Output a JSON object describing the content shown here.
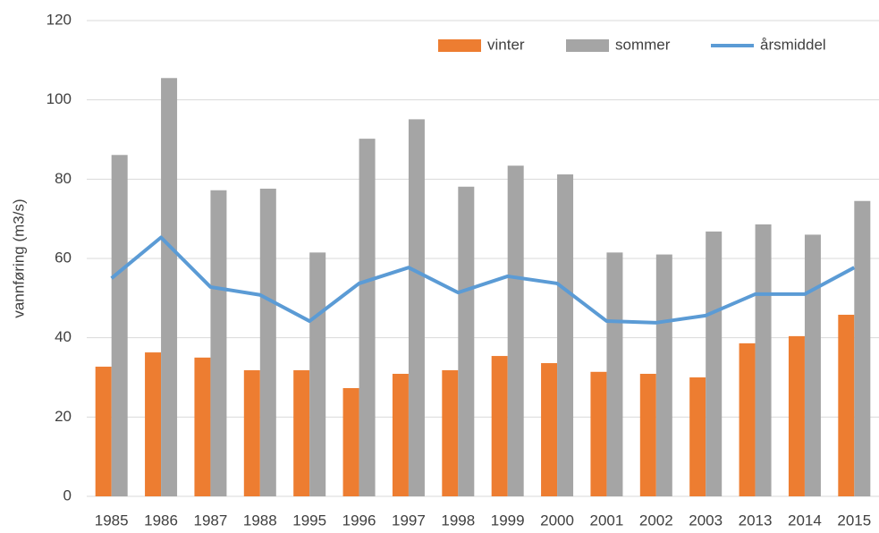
{
  "chart_data": {
    "type": "bar",
    "y_label": "vannføring (m3/s)",
    "categories": [
      "1985",
      "1986",
      "1987",
      "1988",
      "1995",
      "1996",
      "1997",
      "1998",
      "1999",
      "2000",
      "2001",
      "2002",
      "2003",
      "2013",
      "2014",
      "2015"
    ],
    "series": [
      {
        "name": "vinter",
        "type": "bar",
        "color": "#ed7d31",
        "values": [
          32.7,
          36.3,
          35,
          31.8,
          31.8,
          27.3,
          30.9,
          31.8,
          35.4,
          33.6,
          31.4,
          30.9,
          30,
          38.6,
          40.4,
          45.8
        ]
      },
      {
        "name": "sommer",
        "type": "bar",
        "color": "#a5a5a5",
        "values": [
          86.1,
          105.5,
          77.2,
          77.6,
          61.5,
          90.2,
          95.1,
          78.1,
          83.4,
          81.2,
          61.5,
          61,
          66.8,
          68.6,
          66,
          74.5
        ]
      },
      {
        "name": "årsmiddel",
        "type": "line",
        "color": "#5b9bd5",
        "values": [
          55,
          65.3,
          52.8,
          50.8,
          44.2,
          53.7,
          57.7,
          51.4,
          55.5,
          53.7,
          44.2,
          43.8,
          45.6,
          51,
          51,
          57.7
        ]
      }
    ],
    "ylim": [
      0,
      120
    ],
    "yticks": [
      0,
      20,
      40,
      60,
      80,
      100,
      120
    ],
    "grid": true,
    "legend": "upper right"
  }
}
